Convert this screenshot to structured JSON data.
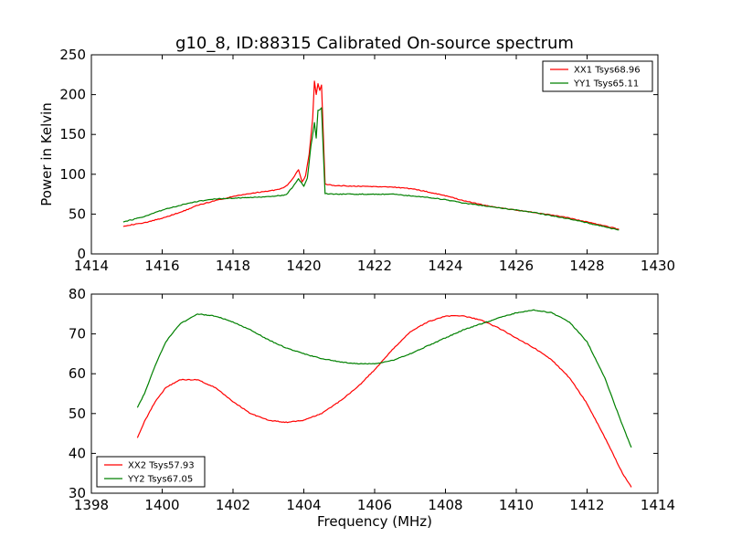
{
  "title": "g10_8, ID:88315 Calibrated On-source spectrum",
  "chart_data": [
    {
      "type": "line",
      "title": "g10_8, ID:88315 Calibrated On-source spectrum",
      "xlabel": "",
      "ylabel": "Power in Kelvin",
      "xlim": [
        1414,
        1430
      ],
      "ylim": [
        0,
        250
      ],
      "xticks": [
        1414,
        1416,
        1418,
        1420,
        1422,
        1424,
        1426,
        1428,
        1430
      ],
      "yticks": [
        0,
        50,
        100,
        150,
        200,
        250
      ],
      "legend": "top-right",
      "grid": false,
      "series": [
        {
          "name": "XX1 Tsys68.96",
          "color": "#ff0000",
          "points": [
            [
              1414.9,
              35
            ],
            [
              1415.5,
              39
            ],
            [
              1416.0,
              45
            ],
            [
              1416.5,
              52
            ],
            [
              1417.0,
              61
            ],
            [
              1417.5,
              67
            ],
            [
              1418.0,
              72
            ],
            [
              1418.5,
              76
            ],
            [
              1419.0,
              79
            ],
            [
              1419.3,
              81
            ],
            [
              1419.5,
              85
            ],
            [
              1419.7,
              95
            ],
            [
              1419.85,
              106
            ],
            [
              1419.95,
              90
            ],
            [
              1420.05,
              98
            ],
            [
              1420.15,
              125
            ],
            [
              1420.25,
              170
            ],
            [
              1420.3,
              217
            ],
            [
              1420.35,
              200
            ],
            [
              1420.4,
              214
            ],
            [
              1420.45,
              205
            ],
            [
              1420.5,
              212
            ],
            [
              1420.6,
              88
            ],
            [
              1420.8,
              86
            ],
            [
              1421.5,
              85
            ],
            [
              1422.5,
              84
            ],
            [
              1423.0,
              82
            ],
            [
              1423.5,
              78
            ],
            [
              1424.0,
              73
            ],
            [
              1424.5,
              67
            ],
            [
              1425.0,
              62
            ],
            [
              1425.5,
              58
            ],
            [
              1426.0,
              55
            ],
            [
              1426.5,
              52
            ],
            [
              1427.0,
              49
            ],
            [
              1427.5,
              45
            ],
            [
              1428.0,
              40
            ],
            [
              1428.5,
              35
            ],
            [
              1428.9,
              31
            ]
          ]
        },
        {
          "name": "YY1 Tsys65.11",
          "color": "#008000",
          "points": [
            [
              1414.9,
              40
            ],
            [
              1415.5,
              47
            ],
            [
              1416.0,
              55
            ],
            [
              1416.5,
              61
            ],
            [
              1417.0,
              66
            ],
            [
              1417.5,
              69
            ],
            [
              1418.0,
              70
            ],
            [
              1418.5,
              71
            ],
            [
              1419.0,
              72
            ],
            [
              1419.5,
              74
            ],
            [
              1419.7,
              85
            ],
            [
              1419.85,
              94
            ],
            [
              1420.0,
              85
            ],
            [
              1420.1,
              95
            ],
            [
              1420.2,
              135
            ],
            [
              1420.3,
              165
            ],
            [
              1420.35,
              145
            ],
            [
              1420.4,
              180
            ],
            [
              1420.5,
              183
            ],
            [
              1420.6,
              76
            ],
            [
              1420.8,
              75
            ],
            [
              1421.5,
              75
            ],
            [
              1422.5,
              75
            ],
            [
              1423.0,
              73
            ],
            [
              1423.5,
              71
            ],
            [
              1424.0,
              68
            ],
            [
              1424.5,
              64
            ],
            [
              1425.0,
              61
            ],
            [
              1425.5,
              58
            ],
            [
              1426.0,
              55
            ],
            [
              1426.5,
              52
            ],
            [
              1427.0,
              48
            ],
            [
              1427.5,
              44
            ],
            [
              1428.0,
              39
            ],
            [
              1428.5,
              34
            ],
            [
              1428.9,
              30
            ]
          ]
        }
      ]
    },
    {
      "type": "line",
      "title": "",
      "xlabel": "Frequency (MHz)",
      "ylabel": "",
      "xlim": [
        1398,
        1414
      ],
      "ylim": [
        30,
        80
      ],
      "xticks": [
        1398,
        1400,
        1402,
        1404,
        1406,
        1408,
        1410,
        1412,
        1414
      ],
      "yticks": [
        30,
        40,
        50,
        60,
        70,
        80
      ],
      "legend": "bottom-left",
      "grid": false,
      "series": [
        {
          "name": "XX2 Tsys57.93",
          "color": "#ff0000",
          "points": [
            [
              1399.3,
              44
            ],
            [
              1399.5,
              48
            ],
            [
              1399.8,
              53
            ],
            [
              1400.1,
              56.5
            ],
            [
              1400.5,
              58.5
            ],
            [
              1401.0,
              58.5
            ],
            [
              1401.5,
              56.5
            ],
            [
              1402.0,
              53
            ],
            [
              1402.5,
              50
            ],
            [
              1403.0,
              48.3
            ],
            [
              1403.5,
              47.8
            ],
            [
              1404.0,
              48.3
            ],
            [
              1404.5,
              50
            ],
            [
              1405.0,
              53
            ],
            [
              1405.5,
              56.5
            ],
            [
              1406.0,
              61
            ],
            [
              1406.5,
              66
            ],
            [
              1407.0,
              70.5
            ],
            [
              1407.5,
              73
            ],
            [
              1408.0,
              74.5
            ],
            [
              1408.5,
              74.5
            ],
            [
              1409.0,
              73.5
            ],
            [
              1409.5,
              71.5
            ],
            [
              1410.0,
              69
            ],
            [
              1410.5,
              66.5
            ],
            [
              1411.0,
              63.5
            ],
            [
              1411.5,
              59
            ],
            [
              1412.0,
              52.5
            ],
            [
              1412.5,
              44
            ],
            [
              1413.0,
              35
            ],
            [
              1413.25,
              31.5
            ]
          ]
        },
        {
          "name": "YY2 Tsys67.05",
          "color": "#008000",
          "points": [
            [
              1399.3,
              51.5
            ],
            [
              1399.5,
              55
            ],
            [
              1399.8,
              62
            ],
            [
              1400.1,
              68
            ],
            [
              1400.5,
              72.5
            ],
            [
              1401.0,
              75
            ],
            [
              1401.5,
              74.5
            ],
            [
              1402.0,
              73
            ],
            [
              1402.5,
              71
            ],
            [
              1403.0,
              68.5
            ],
            [
              1403.5,
              66.5
            ],
            [
              1404.0,
              65
            ],
            [
              1404.5,
              63.8
            ],
            [
              1405.0,
              63
            ],
            [
              1405.5,
              62.5
            ],
            [
              1406.0,
              62.5
            ],
            [
              1406.5,
              63.3
            ],
            [
              1407.0,
              65
            ],
            [
              1407.5,
              67
            ],
            [
              1408.0,
              69
            ],
            [
              1408.5,
              71
            ],
            [
              1409.0,
              72.5
            ],
            [
              1409.5,
              74
            ],
            [
              1410.0,
              75.3
            ],
            [
              1410.5,
              76
            ],
            [
              1411.0,
              75.3
            ],
            [
              1411.5,
              73
            ],
            [
              1412.0,
              68
            ],
            [
              1412.5,
              59
            ],
            [
              1413.0,
              47
            ],
            [
              1413.25,
              41.5
            ]
          ]
        }
      ]
    }
  ]
}
